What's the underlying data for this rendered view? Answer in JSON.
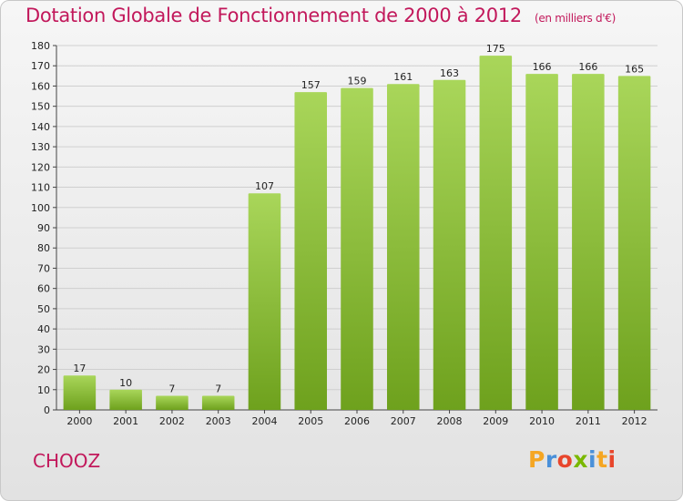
{
  "header": {
    "title": "Dotation Globale de Fonctionnement de 2000 à 2012",
    "subtitle": "(en milliers d'€)"
  },
  "footer": {
    "commune": "CHOOZ",
    "logo_letters": [
      "P",
      "r",
      "o",
      "x",
      "i",
      "t",
      "i"
    ],
    "logo_colors": [
      "#f5a623",
      "#4a90d9",
      "#e8462c",
      "#7ab800",
      "#4a90d9",
      "#f5a623",
      "#e8462c"
    ]
  },
  "colors": {
    "bar_light": "#a9d65a",
    "bar_dark": "#6ea11d",
    "title": "#c2185b"
  },
  "chart_data": {
    "type": "bar",
    "title": "Dotation Globale de Fonctionnement de 2000 à 2012",
    "subtitle": "(en milliers d'€)",
    "xlabel": "",
    "ylabel": "",
    "categories": [
      "2000",
      "2001",
      "2002",
      "2003",
      "2004",
      "2005",
      "2006",
      "2007",
      "2008",
      "2009",
      "2010",
      "2011",
      "2012"
    ],
    "values": [
      17,
      10,
      7,
      7,
      107,
      157,
      159,
      161,
      163,
      175,
      166,
      166,
      165
    ],
    "ylim": [
      0,
      180
    ],
    "yticks": [
      0,
      10,
      20,
      30,
      40,
      50,
      60,
      70,
      80,
      90,
      100,
      110,
      120,
      130,
      140,
      150,
      160,
      170,
      180
    ],
    "grid": true,
    "legend": "none"
  }
}
